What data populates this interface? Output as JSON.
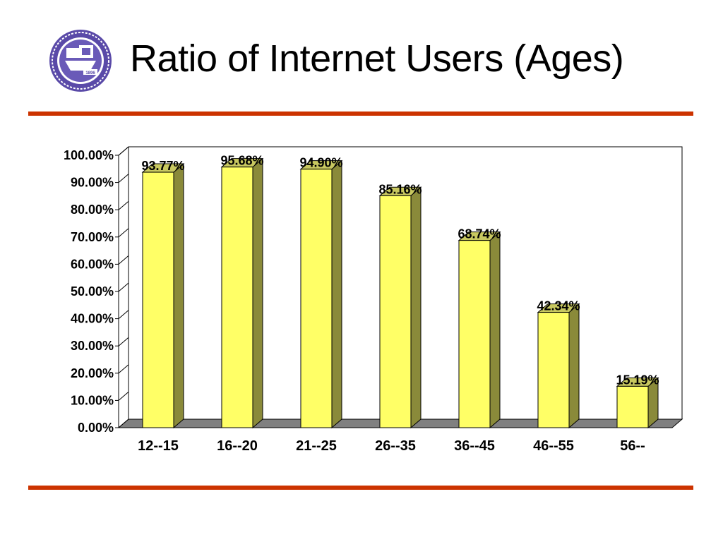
{
  "slide": {
    "title": "Ratio of Internet Users (Ages)",
    "accent_color": "#cc3300",
    "logo": {
      "icon": "university-seal-icon",
      "text": "1896"
    }
  },
  "chart_data": {
    "type": "bar",
    "style": "3d",
    "title": "Ratio of Internet Users (Ages)",
    "xlabel": "",
    "ylabel": "",
    "categories": [
      "12--15",
      "16--20",
      "21--25",
      "26--35",
      "36--45",
      "46--55",
      "56--"
    ],
    "values": [
      93.77,
      95.68,
      94.9,
      85.16,
      68.74,
      42.34,
      15.19
    ],
    "data_labels": [
      "93.77%",
      "95.68%",
      "94.90%",
      "85.16%",
      "68.74%",
      "42.34%",
      "15.19%"
    ],
    "yticks": [
      "0.00%",
      "10.00%",
      "20.00%",
      "30.00%",
      "40.00%",
      "50.00%",
      "60.00%",
      "70.00%",
      "80.00%",
      "90.00%",
      "100.00%"
    ],
    "ylim": [
      0,
      100
    ],
    "grid": false,
    "legend": "none",
    "colors": {
      "bar_front": "#ffff66",
      "bar_side": "#8a8a3a",
      "bar_top": "#c8c860",
      "floor": "#808080"
    }
  }
}
